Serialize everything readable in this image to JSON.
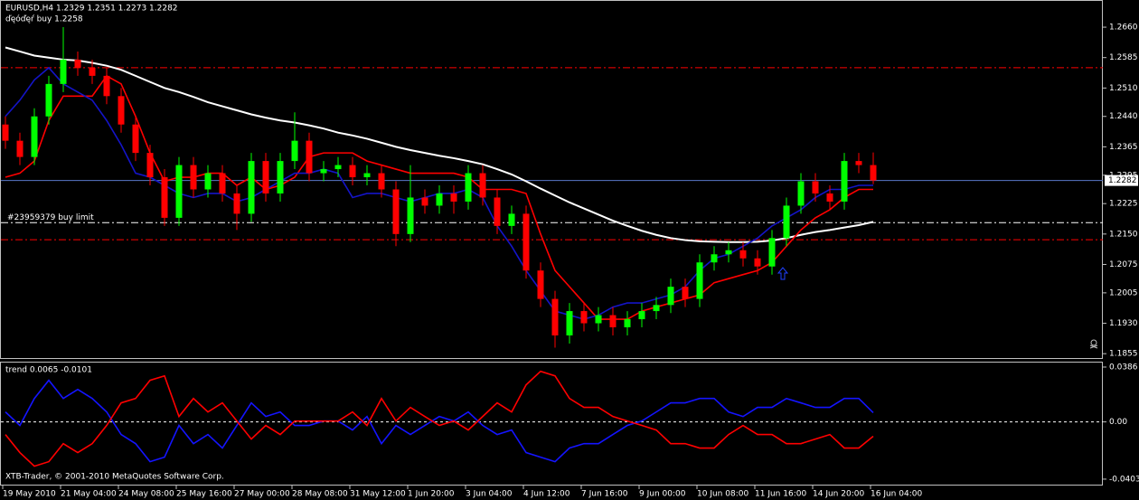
{
  "chart_data": [
    {
      "type": "candlestick",
      "title": "EURUSD,H4  1.2329 1.2351 1.2273 1.2282",
      "subtitle": "ďęóďęŕ buy 1.2258",
      "categories": [
        "19 May 2010",
        null,
        null,
        null,
        "21 May 04:00",
        null,
        null,
        null,
        "24 May 08:00",
        null,
        null,
        null,
        "25 May 16:00",
        null,
        null,
        null,
        "27 May 00:00",
        null,
        null,
        null,
        "28 May 08:00",
        null,
        null,
        null,
        "31 May 12:00",
        null,
        null,
        null,
        "1 Jun 20:00",
        null,
        null,
        null,
        "3 Jun 04:00",
        null,
        null,
        null,
        "4 Jun 12:00",
        null,
        null,
        null,
        "7 Jun 16:00",
        null,
        null,
        null,
        "9 Jun 00:00",
        null,
        null,
        null,
        "10 Jun 08:00",
        null,
        null,
        null,
        "11 Jun 16:00",
        null,
        null,
        null,
        "14 Jun 20:00",
        null,
        null,
        null,
        "16 Jun 04:00"
      ],
      "open": [
        1.242,
        1.238,
        1.234,
        1.244,
        1.252,
        1.258,
        1.256,
        1.254,
        1.249,
        1.242,
        1.235,
        1.229,
        1.219,
        1.232,
        1.226,
        1.23,
        1.225,
        1.22,
        1.233,
        1.225,
        1.233,
        1.238,
        1.23,
        1.231,
        1.232,
        1.229,
        1.23,
        1.226,
        1.215,
        1.224,
        1.222,
        1.225,
        1.223,
        1.23,
        1.224,
        1.217,
        1.22,
        1.206,
        1.199,
        1.19,
        1.196,
        1.193,
        1.195,
        1.192,
        1.194,
        1.196,
        1.1975,
        1.202,
        1.199,
        1.208,
        1.21,
        1.211,
        1.209,
        1.207,
        1.214,
        1.222,
        1.228,
        1.225,
        1.223,
        1.233,
        1.232
      ],
      "high": [
        1.244,
        1.24,
        1.246,
        1.254,
        1.266,
        1.26,
        1.258,
        1.256,
        1.251,
        1.244,
        1.237,
        1.231,
        1.234,
        1.234,
        1.232,
        1.232,
        1.227,
        1.235,
        1.235,
        1.235,
        1.245,
        1.24,
        1.233,
        1.234,
        1.234,
        1.232,
        1.232,
        1.228,
        1.232,
        1.226,
        1.227,
        1.227,
        1.232,
        1.232,
        1.226,
        1.222,
        1.222,
        1.208,
        1.201,
        1.198,
        1.198,
        1.197,
        1.197,
        1.196,
        1.198,
        1.1995,
        1.204,
        1.204,
        1.21,
        1.212,
        1.213,
        1.213,
        1.211,
        1.216,
        1.224,
        1.23,
        1.23,
        1.227,
        1.235,
        1.235,
        1.2351
      ],
      "low": [
        1.236,
        1.232,
        1.232,
        1.242,
        1.25,
        1.254,
        1.252,
        1.247,
        1.24,
        1.233,
        1.227,
        1.217,
        1.217,
        1.224,
        1.224,
        1.223,
        1.216,
        1.218,
        1.223,
        1.223,
        1.231,
        1.228,
        1.228,
        1.229,
        1.227,
        1.227,
        1.224,
        1.212,
        1.213,
        1.22,
        1.22,
        1.22,
        1.221,
        1.222,
        1.215,
        1.215,
        1.204,
        1.197,
        1.187,
        1.188,
        1.191,
        1.191,
        1.19,
        1.19,
        1.192,
        1.194,
        1.1955,
        1.197,
        1.197,
        1.206,
        1.208,
        1.207,
        1.205,
        1.205,
        1.212,
        1.22,
        1.223,
        1.221,
        1.221,
        1.23,
        1.2273
      ],
      "close": [
        1.238,
        1.234,
        1.244,
        1.252,
        1.258,
        1.256,
        1.254,
        1.249,
        1.242,
        1.235,
        1.229,
        1.219,
        1.232,
        1.226,
        1.23,
        1.225,
        1.22,
        1.233,
        1.225,
        1.233,
        1.238,
        1.23,
        1.231,
        1.232,
        1.229,
        1.23,
        1.226,
        1.215,
        1.224,
        1.222,
        1.225,
        1.223,
        1.23,
        1.224,
        1.217,
        1.22,
        1.206,
        1.199,
        1.19,
        1.196,
        1.193,
        1.195,
        1.192,
        1.194,
        1.196,
        1.1975,
        1.202,
        1.199,
        1.208,
        1.21,
        1.211,
        1.209,
        1.207,
        1.214,
        1.222,
        1.228,
        1.225,
        1.223,
        1.233,
        1.232,
        1.2282
      ],
      "up_color": "#00ff00",
      "down_color": "#ff0000",
      "series": [
        {
          "color": "#ffffff",
          "values": [
            1.261,
            1.26,
            1.259,
            1.2585,
            1.258,
            1.2578,
            1.2572,
            1.2565,
            1.2555,
            1.254,
            1.2525,
            1.251,
            1.25,
            1.2488,
            1.2475,
            1.2465,
            1.2455,
            1.2445,
            1.2437,
            1.243,
            1.2425,
            1.2418,
            1.241,
            1.24,
            1.2393,
            1.2385,
            1.2375,
            1.2365,
            1.2357,
            1.235,
            1.2343,
            1.2337,
            1.233,
            1.2322,
            1.231,
            1.2297,
            1.228,
            1.2262,
            1.2245,
            1.2228,
            1.2213,
            1.2198,
            1.2183,
            1.217,
            1.2158,
            1.2148,
            1.214,
            1.2135,
            1.2132,
            1.2131,
            1.213,
            1.213,
            1.2131,
            1.2134,
            1.214,
            1.2148,
            1.2155,
            1.216,
            1.2166,
            1.2172,
            1.218
          ]
        },
        {
          "color": "#ff0000",
          "values": [
            1.229,
            1.23,
            1.233,
            1.243,
            1.249,
            1.249,
            1.249,
            1.254,
            1.252,
            1.244,
            1.235,
            1.228,
            1.229,
            1.229,
            1.23,
            1.23,
            1.227,
            1.229,
            1.226,
            1.227,
            1.229,
            1.234,
            1.235,
            1.235,
            1.235,
            1.233,
            1.232,
            1.231,
            1.23,
            1.23,
            1.23,
            1.23,
            1.229,
            1.226,
            1.226,
            1.226,
            1.225,
            1.215,
            1.206,
            1.202,
            1.198,
            1.194,
            1.194,
            1.194,
            1.196,
            1.197,
            1.198,
            1.199,
            1.2,
            1.203,
            1.204,
            1.205,
            1.206,
            1.208,
            1.212,
            1.216,
            1.219,
            1.221,
            1.224,
            1.226,
            1.226
          ]
        },
        {
          "color": "#1414c8",
          "values": [
            1.244,
            1.248,
            1.253,
            1.256,
            1.252,
            1.25,
            1.248,
            1.243,
            1.237,
            1.23,
            1.229,
            1.227,
            1.225,
            1.224,
            1.225,
            1.225,
            1.223,
            1.224,
            1.226,
            1.228,
            1.23,
            1.23,
            1.231,
            1.23,
            1.224,
            1.225,
            1.225,
            1.224,
            1.223,
            1.224,
            1.225,
            1.225,
            1.226,
            1.224,
            1.217,
            1.212,
            1.206,
            1.201,
            1.196,
            1.195,
            1.194,
            1.195,
            1.197,
            1.198,
            1.198,
            1.199,
            1.2,
            1.202,
            1.206,
            1.209,
            1.21,
            1.212,
            1.214,
            1.217,
            1.219,
            1.221,
            1.224,
            1.226,
            1.226,
            1.227,
            1.227
          ]
        }
      ],
      "levels": [
        {
          "value": 1.256,
          "color": "#ff0000"
        },
        {
          "value": 1.2178,
          "color": "#ffffff",
          "label": "#23959379 buy limit"
        },
        {
          "value": 1.2136,
          "color": "#ff0000"
        }
      ],
      "current_price": 1.2282,
      "ylim": [
        1.1842,
        1.2727
      ],
      "yticks": [
        {
          "value": 1.266,
          "label": "1.2660"
        },
        1.2585,
        {
          "value": 1.251,
          "label": "1.2510"
        },
        {
          "value": 1.244,
          "label": "1.2440"
        },
        1.2365,
        1.2295,
        1.2225,
        {
          "value": 1.215,
          "label": "1.2150"
        },
        1.2075,
        1.2005,
        {
          "value": 1.193,
          "label": "1.1930"
        },
        1.1855
      ]
    },
    {
      "type": "line",
      "title": "trend 0.0065 -0.0101",
      "series": [
        {
          "color": "#1414ff",
          "values": [
            0.007,
            -0.0025,
            0.0165,
            0.0293,
            0.0165,
            0.0229,
            0.0165,
            0.007,
            -0.0089,
            -0.0153,
            -0.028,
            -0.0248,
            -0.0025,
            -0.0153,
            -0.0089,
            -0.0184,
            -0.0025,
            0.0134,
            0.0038,
            0.007,
            -0.0025,
            -0.0025,
            0.0006,
            0.0006,
            -0.0057,
            0.0038,
            -0.0153,
            -0.0025,
            -0.0089,
            -0.0025,
            0.0038,
            0.0006,
            0.007,
            -0.0025,
            -0.0089,
            -0.0057,
            -0.0216,
            -0.0248,
            -0.028,
            -0.0184,
            -0.0153,
            -0.0153,
            -0.0089,
            -0.0025,
            0.0006,
            0.007,
            0.0134,
            0.0134,
            0.0165,
            0.0165,
            0.007,
            0.0038,
            0.0102,
            0.0102,
            0.0165,
            0.0134,
            0.0102,
            0.0102,
            0.0165,
            0.0165,
            0.0065
          ]
        },
        {
          "color": "#ff0000",
          "values": [
            -0.0089,
            -0.0216,
            -0.0312,
            -0.028,
            -0.0153,
            -0.0216,
            -0.0153,
            -0.0025,
            0.0134,
            0.0165,
            0.0293,
            0.0324,
            0.0038,
            0.0165,
            0.007,
            0.0134,
            0.0006,
            -0.0121,
            -0.0025,
            -0.0089,
            0.0006,
            0.0006,
            0.0006,
            0.0006,
            0.007,
            -0.0025,
            0.0165,
            0.0006,
            0.0102,
            0.0038,
            -0.0025,
            0.0006,
            -0.0057,
            0.0038,
            0.0134,
            0.007,
            0.0261,
            0.0356,
            0.0324,
            0.0165,
            0.0102,
            0.0102,
            0.0038,
            0.0006,
            -0.0025,
            -0.0057,
            -0.0153,
            -0.0153,
            -0.0184,
            -0.0184,
            -0.0089,
            -0.0025,
            -0.0089,
            -0.0089,
            -0.0153,
            -0.0153,
            -0.0121,
            -0.0089,
            -0.0184,
            -0.0184,
            -0.0101
          ]
        }
      ],
      "zero_line": true,
      "ylim": [
        -0.0448,
        0.0424
      ],
      "yticks": [
        0.0386,
        {
          "value": 0,
          "label": "0.00"
        },
        -0.0403
      ]
    }
  ],
  "footer": "XTB-Trader, © 2001-2010 MetaQuotes Software Corp."
}
